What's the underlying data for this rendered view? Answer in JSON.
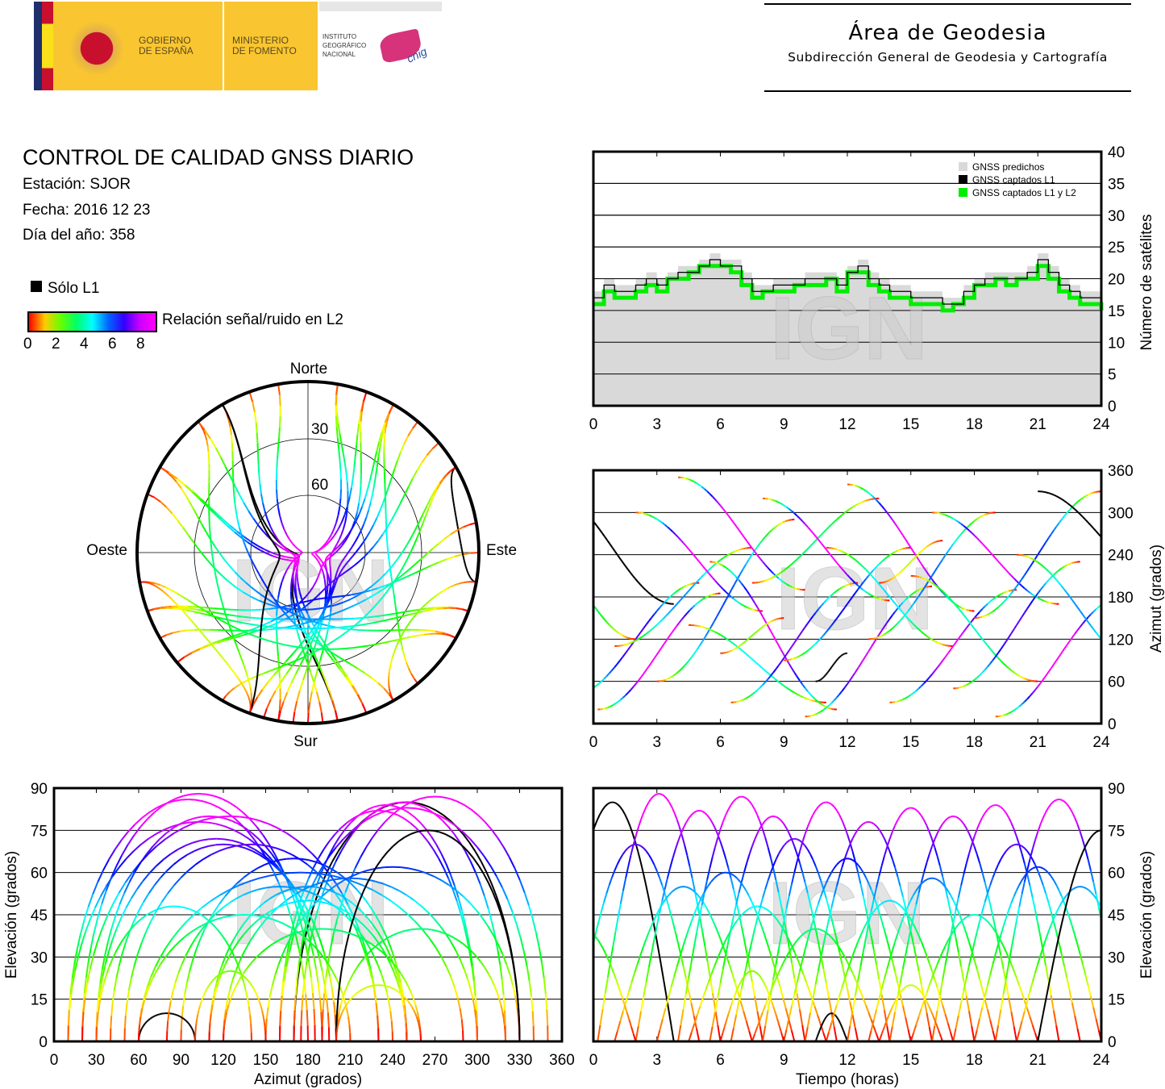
{
  "header": {
    "gov_line1": "GOBIERNO",
    "gov_line2": "DE ESPAÑA",
    "ministry_line1": "MINISTERIO",
    "ministry_line2": "DE FOMENTO",
    "ign_line1": "INSTITUTO",
    "ign_line2": "GEOGRÁFICO",
    "ign_line3": "NACIONAL",
    "cnig": "cnig",
    "area_title": "Área de Geodesia",
    "area_subtitle": "Subdirección General de Geodesia y Cartografía"
  },
  "report": {
    "title": "CONTROL DE CALIDAD GNSS DIARIO",
    "station": "Estación: SJOR",
    "date": "Fecha: 2016 12 23",
    "doy": "Día del año: 358",
    "only_l1": "Sólo L1",
    "snr_label": "Relación señal/ruido en L2",
    "snr_ticks": [
      "0",
      "2",
      "4",
      "6",
      "8"
    ]
  },
  "colors": {
    "l1l2": "#00ee00",
    "l1": "#000000",
    "predicted": "#d9d9d9"
  },
  "watermark": "IGN",
  "chart_data": [
    {
      "id": "satellite-count",
      "type": "line",
      "xlabel": "",
      "ylabel": "Número de satélites",
      "xlim": [
        0,
        24
      ],
      "ylim": [
        0,
        40
      ],
      "xticks": [
        "0",
        "3",
        "6",
        "9",
        "12",
        "15",
        "18",
        "21",
        "24"
      ],
      "yticks": [
        "0",
        "5",
        "10",
        "15",
        "20",
        "25",
        "30",
        "35",
        "40"
      ],
      "legend": [
        "GNSS predichos",
        "GNSS captados L1",
        "GNSS captados L1 y L2"
      ],
      "legend_position": "top-right",
      "x": [
        0,
        0.5,
        1,
        1.5,
        2,
        2.5,
        3,
        3.5,
        4,
        4.5,
        5,
        5.5,
        6,
        6.5,
        7,
        7.5,
        8,
        8.5,
        9,
        9.5,
        10,
        10.5,
        11,
        11.5,
        12,
        12.5,
        13,
        13.5,
        14,
        14.5,
        15,
        15.5,
        16,
        16.5,
        17,
        17.5,
        18,
        18.5,
        19,
        19.5,
        20,
        20.5,
        21,
        21.5,
        22,
        22.5,
        23,
        23.5,
        24
      ],
      "series": [
        {
          "name": "GNSS predichos",
          "values": [
            18,
            20,
            19,
            19,
            20,
            21,
            20,
            21,
            22,
            22,
            23,
            24,
            23,
            23,
            21,
            19,
            19,
            20,
            20,
            20,
            21,
            21,
            21,
            20,
            22,
            23,
            21,
            20,
            19,
            19,
            18,
            18,
            18,
            17,
            17,
            19,
            20,
            21,
            21,
            21,
            21,
            22,
            24,
            22,
            20,
            19,
            18,
            18,
            17
          ]
        },
        {
          "name": "GNSS captados L1",
          "values": [
            17,
            19,
            18,
            18,
            19,
            20,
            19,
            20,
            21,
            21,
            22,
            23,
            22,
            22,
            20,
            18,
            18,
            19,
            19,
            19,
            20,
            20,
            20,
            19,
            21,
            22,
            20,
            19,
            18,
            18,
            17,
            17,
            17,
            16,
            16,
            18,
            19,
            20,
            20,
            20,
            20,
            21,
            23,
            21,
            19,
            18,
            17,
            17,
            16
          ]
        },
        {
          "name": "GNSS captados L1 y L2",
          "values": [
            16,
            18,
            17,
            17,
            18,
            19,
            18,
            20,
            20,
            21,
            22,
            22,
            22,
            21,
            19,
            17,
            18,
            18,
            18,
            19,
            19,
            19,
            20,
            18,
            21,
            21,
            19,
            18,
            17,
            17,
            16,
            16,
            16,
            15,
            16,
            17,
            19,
            19,
            20,
            19,
            20,
            20,
            22,
            20,
            18,
            17,
            16,
            16,
            15
          ]
        }
      ]
    },
    {
      "id": "skyplot",
      "type": "scatter",
      "directions": {
        "north": "Norte",
        "south": "Sur",
        "east": "Este",
        "west": "Oeste"
      },
      "rings": [
        "30",
        "60"
      ]
    },
    {
      "id": "azimuth-time",
      "type": "scatter",
      "xlim": [
        0,
        24
      ],
      "ylim": [
        0,
        360
      ],
      "ylabel": "Azimut (grados)",
      "xticks": [
        "0",
        "3",
        "6",
        "9",
        "12",
        "15",
        "18",
        "21",
        "24"
      ],
      "yticks": [
        "0",
        "60",
        "120",
        "180",
        "240",
        "300",
        "360"
      ]
    },
    {
      "id": "elevation-azimuth",
      "type": "scatter",
      "xlim": [
        0,
        360
      ],
      "ylim": [
        0,
        90
      ],
      "xlabel": "Azimut (grados)",
      "ylabel": "Elevación (grados)",
      "xticks": [
        "0",
        "30",
        "60",
        "90",
        "120",
        "150",
        "180",
        "210",
        "240",
        "270",
        "300",
        "330",
        "360"
      ],
      "yticks": [
        "0",
        "15",
        "30",
        "45",
        "60",
        "75",
        "90"
      ]
    },
    {
      "id": "elevation-time",
      "type": "scatter",
      "xlim": [
        0,
        24
      ],
      "ylim": [
        0,
        90
      ],
      "xlabel": "Tiempo (horas)",
      "ylabel": "Elevación (grados)",
      "xticks": [
        "0",
        "3",
        "6",
        "9",
        "12",
        "15",
        "18",
        "21",
        "24"
      ],
      "yticks": [
        "0",
        "15",
        "30",
        "45",
        "60",
        "75",
        "90"
      ]
    }
  ],
  "passes": [
    {
      "rise": -2,
      "set": 3.8,
      "max": 85,
      "az0": 330,
      "az1": 170,
      "l1": true
    },
    {
      "rise": -1,
      "set": 5,
      "max": 70,
      "az0": 40,
      "az1": 200
    },
    {
      "rise": 0.2,
      "set": 6,
      "max": 88,
      "az0": 20,
      "az1": 185
    },
    {
      "rise": 1,
      "set": 7.5,
      "max": 55,
      "az0": 110,
      "az1": 250
    },
    {
      "rise": 2,
      "set": 8,
      "max": 82,
      "az0": 300,
      "az1": 160
    },
    {
      "rise": 3,
      "set": 9.5,
      "max": 60,
      "az0": 60,
      "az1": 290
    },
    {
      "rise": 4,
      "set": 10,
      "max": 87,
      "az0": 350,
      "az1": 190
    },
    {
      "rise": 4.5,
      "set": 11,
      "max": 48,
      "az0": 140,
      "az1": 30
    },
    {
      "rise": 5.5,
      "set": 11.5,
      "max": 80,
      "az0": 230,
      "az1": 20
    },
    {
      "rise": 6.5,
      "set": 12.5,
      "max": 72,
      "az0": 30,
      "az1": 200
    },
    {
      "rise": 7.5,
      "set": 13.5,
      "max": 40,
      "az0": 200,
      "az1": 320
    },
    {
      "rise": 8,
      "set": 14,
      "max": 85,
      "az0": 320,
      "az1": 175
    },
    {
      "rise": 9,
      "set": 15,
      "max": 65,
      "az0": 90,
      "az1": 250
    },
    {
      "rise": 10,
      "set": 16,
      "max": 78,
      "az0": 10,
      "az1": 195
    },
    {
      "rise": 10.5,
      "set": 12,
      "max": 10,
      "az0": 60,
      "az1": 100,
      "l1": true
    },
    {
      "rise": 11,
      "set": 17,
      "max": 50,
      "az0": 250,
      "az1": 110
    },
    {
      "rise": 12,
      "set": 18,
      "max": 83,
      "az0": 340,
      "az1": 160
    },
    {
      "rise": 13,
      "set": 19,
      "max": 58,
      "az0": 120,
      "az1": 300
    },
    {
      "rise": 14,
      "set": 20,
      "max": 80,
      "az0": 30,
      "az1": 190
    },
    {
      "rise": 15,
      "set": 21,
      "max": 45,
      "az0": 210,
      "az1": 60
    },
    {
      "rise": 16,
      "set": 22,
      "max": 84,
      "az0": 300,
      "az1": 170
    },
    {
      "rise": 17,
      "set": 23,
      "max": 70,
      "az0": 50,
      "az1": 230
    },
    {
      "rise": 18,
      "set": 24,
      "max": 62,
      "az0": 150,
      "az1": 330
    },
    {
      "rise": 19,
      "set": 25,
      "max": 86,
      "az0": 10,
      "az1": 180
    },
    {
      "rise": 20,
      "set": 26,
      "max": 55,
      "az0": 240,
      "az1": 80
    },
    {
      "rise": 21,
      "set": 27,
      "max": 75,
      "az0": 330,
      "az1": 200,
      "l1": true
    },
    {
      "rise": -3,
      "set": 2,
      "max": 40,
      "az0": 260,
      "az1": 120
    },
    {
      "rise": 6,
      "set": 9,
      "max": 25,
      "az0": 100,
      "az1": 150
    },
    {
      "rise": 13.5,
      "set": 16.5,
      "max": 20,
      "az0": 200,
      "az1": 260
    }
  ]
}
